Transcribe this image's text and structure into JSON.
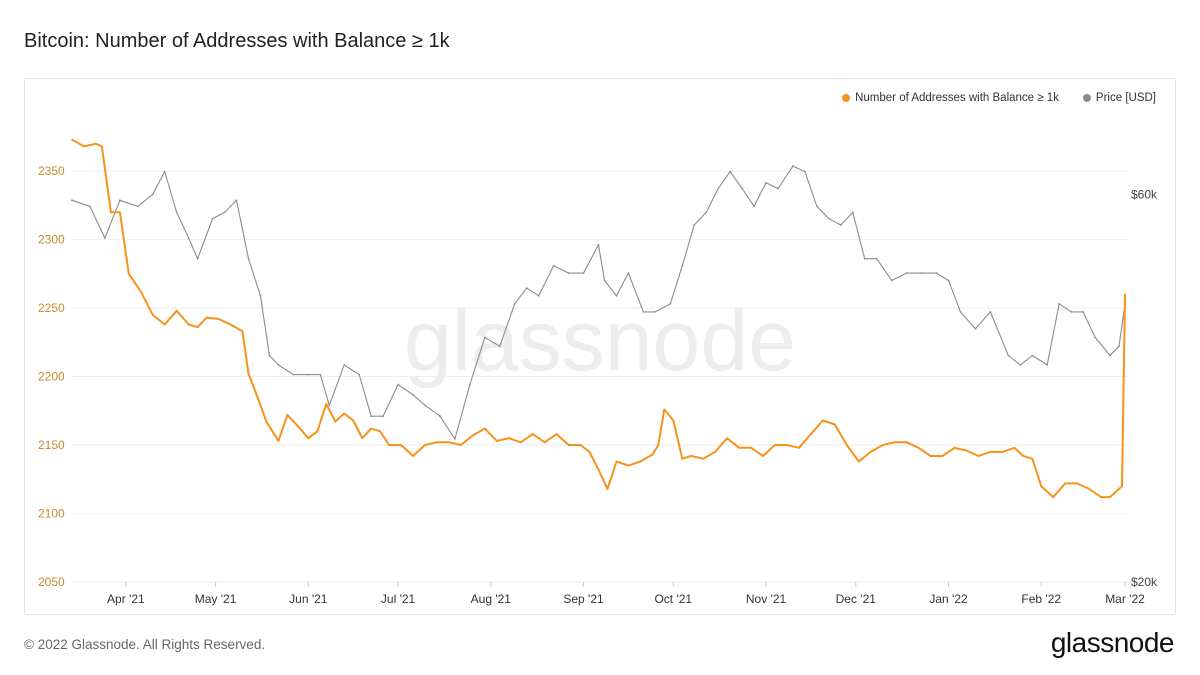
{
  "title": "Bitcoin: Number of Addresses with Balance ≥ 1k",
  "footer": {
    "copyright": "© 2022 Glassnode. All Rights Reserved.",
    "brand": "glassnode"
  },
  "watermark": "glassnode",
  "colors": {
    "addresses": "#f7931a",
    "price": "#8c8c8c",
    "grid": "#eeeeee",
    "left_axis": "#c98a2e",
    "right_axis": "#444444"
  },
  "chart_data": {
    "type": "line",
    "title": "Bitcoin: Number of Addresses with Balance ≥ 1k",
    "legend_position": "top-right",
    "grid": true,
    "x_range": [
      "2021-03-14",
      "2022-03-02"
    ],
    "x_tick_labels": [
      "Apr '21",
      "May '21",
      "Jun '21",
      "Jul '21",
      "Aug '21",
      "Sep '21",
      "Oct '21",
      "Nov '21",
      "Dec '21",
      "Jan '22",
      "Feb '22",
      "Mar '22"
    ],
    "y_left": {
      "range": [
        2050,
        2380
      ],
      "tick_labels": [
        "2050",
        "2100",
        "2150",
        "2200",
        "2250",
        "2300",
        "2350"
      ]
    },
    "y_right": {
      "scale": "log",
      "range_usd": [
        20000,
        72000
      ],
      "tick_labels": [
        "$20k",
        "$60k"
      ]
    },
    "series": [
      {
        "name": "Number of Addresses with Balance ≥ 1k",
        "axis": "left",
        "x": [
          "2021-03-14",
          "2021-03-18",
          "2021-03-22",
          "2021-03-24",
          "2021-03-27",
          "2021-03-30",
          "2021-04-02",
          "2021-04-06",
          "2021-04-10",
          "2021-04-14",
          "2021-04-18",
          "2021-04-22",
          "2021-04-25",
          "2021-04-28",
          "2021-05-02",
          "2021-05-06",
          "2021-05-10",
          "2021-05-12",
          "2021-05-15",
          "2021-05-18",
          "2021-05-22",
          "2021-05-25",
          "2021-05-28",
          "2021-06-01",
          "2021-06-04",
          "2021-06-07",
          "2021-06-10",
          "2021-06-13",
          "2021-06-16",
          "2021-06-19",
          "2021-06-22",
          "2021-06-25",
          "2021-06-28",
          "2021-07-02",
          "2021-07-06",
          "2021-07-10",
          "2021-07-14",
          "2021-07-18",
          "2021-07-22",
          "2021-07-26",
          "2021-07-30",
          "2021-08-03",
          "2021-08-07",
          "2021-08-11",
          "2021-08-15",
          "2021-08-19",
          "2021-08-23",
          "2021-08-27",
          "2021-08-31",
          "2021-09-03",
          "2021-09-06",
          "2021-09-09",
          "2021-09-12",
          "2021-09-16",
          "2021-09-20",
          "2021-09-24",
          "2021-09-26",
          "2021-09-28",
          "2021-10-01",
          "2021-10-04",
          "2021-10-07",
          "2021-10-11",
          "2021-10-15",
          "2021-10-19",
          "2021-10-23",
          "2021-10-27",
          "2021-10-31",
          "2021-11-04",
          "2021-11-08",
          "2021-11-12",
          "2021-11-16",
          "2021-11-20",
          "2021-11-24",
          "2021-11-28",
          "2021-12-02",
          "2021-12-06",
          "2021-12-10",
          "2021-12-14",
          "2021-12-18",
          "2021-12-22",
          "2021-12-26",
          "2021-12-30",
          "2022-01-03",
          "2022-01-07",
          "2022-01-11",
          "2022-01-15",
          "2022-01-19",
          "2022-01-23",
          "2022-01-26",
          "2022-01-29",
          "2022-02-01",
          "2022-02-05",
          "2022-02-09",
          "2022-02-13",
          "2022-02-17",
          "2022-02-21",
          "2022-02-24",
          "2022-02-27",
          "2022-02-28",
          "2022-03-01"
        ],
        "values": [
          2373,
          2368,
          2370,
          2368,
          2320,
          2320,
          2275,
          2262,
          2245,
          2238,
          2248,
          2238,
          2236,
          2243,
          2242,
          2238,
          2233,
          2202,
          2185,
          2167,
          2153,
          2172,
          2165,
          2155,
          2160,
          2180,
          2167,
          2173,
          2168,
          2155,
          2162,
          2160,
          2150,
          2150,
          2142,
          2150,
          2152,
          2152,
          2150,
          2157,
          2162,
          2153,
          2155,
          2152,
          2158,
          2152,
          2158,
          2150,
          2150,
          2145,
          2132,
          2118,
          2138,
          2135,
          2138,
          2143,
          2150,
          2176,
          2168,
          2140,
          2142,
          2140,
          2145,
          2155,
          2148,
          2148,
          2142,
          2150,
          2150,
          2148,
          2158,
          2168,
          2165,
          2150,
          2138,
          2145,
          2150,
          2152,
          2152,
          2148,
          2142,
          2142,
          2148,
          2146,
          2142,
          2145,
          2145,
          2148,
          2142,
          2140,
          2120,
          2112,
          2122,
          2122,
          2118,
          2112,
          2112,
          2118,
          2120,
          2260
        ]
      },
      {
        "name": "Price [USD]",
        "axis": "right",
        "x": [
          "2021-03-14",
          "2021-03-20",
          "2021-03-25",
          "2021-03-30",
          "2021-04-05",
          "2021-04-10",
          "2021-04-14",
          "2021-04-18",
          "2021-04-22",
          "2021-04-25",
          "2021-04-30",
          "2021-05-04",
          "2021-05-08",
          "2021-05-12",
          "2021-05-16",
          "2021-05-19",
          "2021-05-22",
          "2021-05-27",
          "2021-06-01",
          "2021-06-05",
          "2021-06-08",
          "2021-06-13",
          "2021-06-18",
          "2021-06-22",
          "2021-06-26",
          "2021-07-01",
          "2021-07-06",
          "2021-07-10",
          "2021-07-15",
          "2021-07-20",
          "2021-07-25",
          "2021-07-30",
          "2021-08-04",
          "2021-08-09",
          "2021-08-13",
          "2021-08-17",
          "2021-08-22",
          "2021-08-27",
          "2021-09-01",
          "2021-09-06",
          "2021-09-08",
          "2021-09-12",
          "2021-09-16",
          "2021-09-21",
          "2021-09-25",
          "2021-09-30",
          "2021-10-04",
          "2021-10-08",
          "2021-10-12",
          "2021-10-16",
          "2021-10-20",
          "2021-10-24",
          "2021-10-28",
          "2021-11-01",
          "2021-11-05",
          "2021-11-10",
          "2021-11-14",
          "2021-11-18",
          "2021-11-22",
          "2021-11-26",
          "2021-11-30",
          "2021-12-04",
          "2021-12-08",
          "2021-12-13",
          "2021-12-18",
          "2021-12-23",
          "2021-12-28",
          "2022-01-01",
          "2022-01-05",
          "2022-01-10",
          "2022-01-15",
          "2022-01-21",
          "2022-01-25",
          "2022-01-29",
          "2022-02-03",
          "2022-02-07",
          "2022-02-11",
          "2022-02-15",
          "2022-02-19",
          "2022-02-24",
          "2022-02-27",
          "2022-03-01"
        ],
        "values": [
          59000,
          58000,
          53000,
          59000,
          58000,
          60000,
          64000,
          57000,
          53000,
          50000,
          56000,
          57000,
          59000,
          50000,
          45000,
          38000,
          37000,
          36000,
          36000,
          36000,
          33000,
          37000,
          36000,
          32000,
          32000,
          35000,
          34000,
          33000,
          32000,
          30000,
          35000,
          40000,
          39000,
          44000,
          46000,
          45000,
          49000,
          48000,
          48000,
          52000,
          47000,
          45000,
          48000,
          43000,
          43000,
          44000,
          49000,
          55000,
          57000,
          61000,
          64000,
          61000,
          58000,
          62000,
          61000,
          65000,
          64000,
          58000,
          56000,
          55000,
          57000,
          50000,
          50000,
          47000,
          48000,
          48000,
          48000,
          47000,
          43000,
          41000,
          43000,
          38000,
          37000,
          38000,
          37000,
          44000,
          43000,
          43000,
          40000,
          38000,
          39000,
          44000
        ]
      }
    ]
  }
}
